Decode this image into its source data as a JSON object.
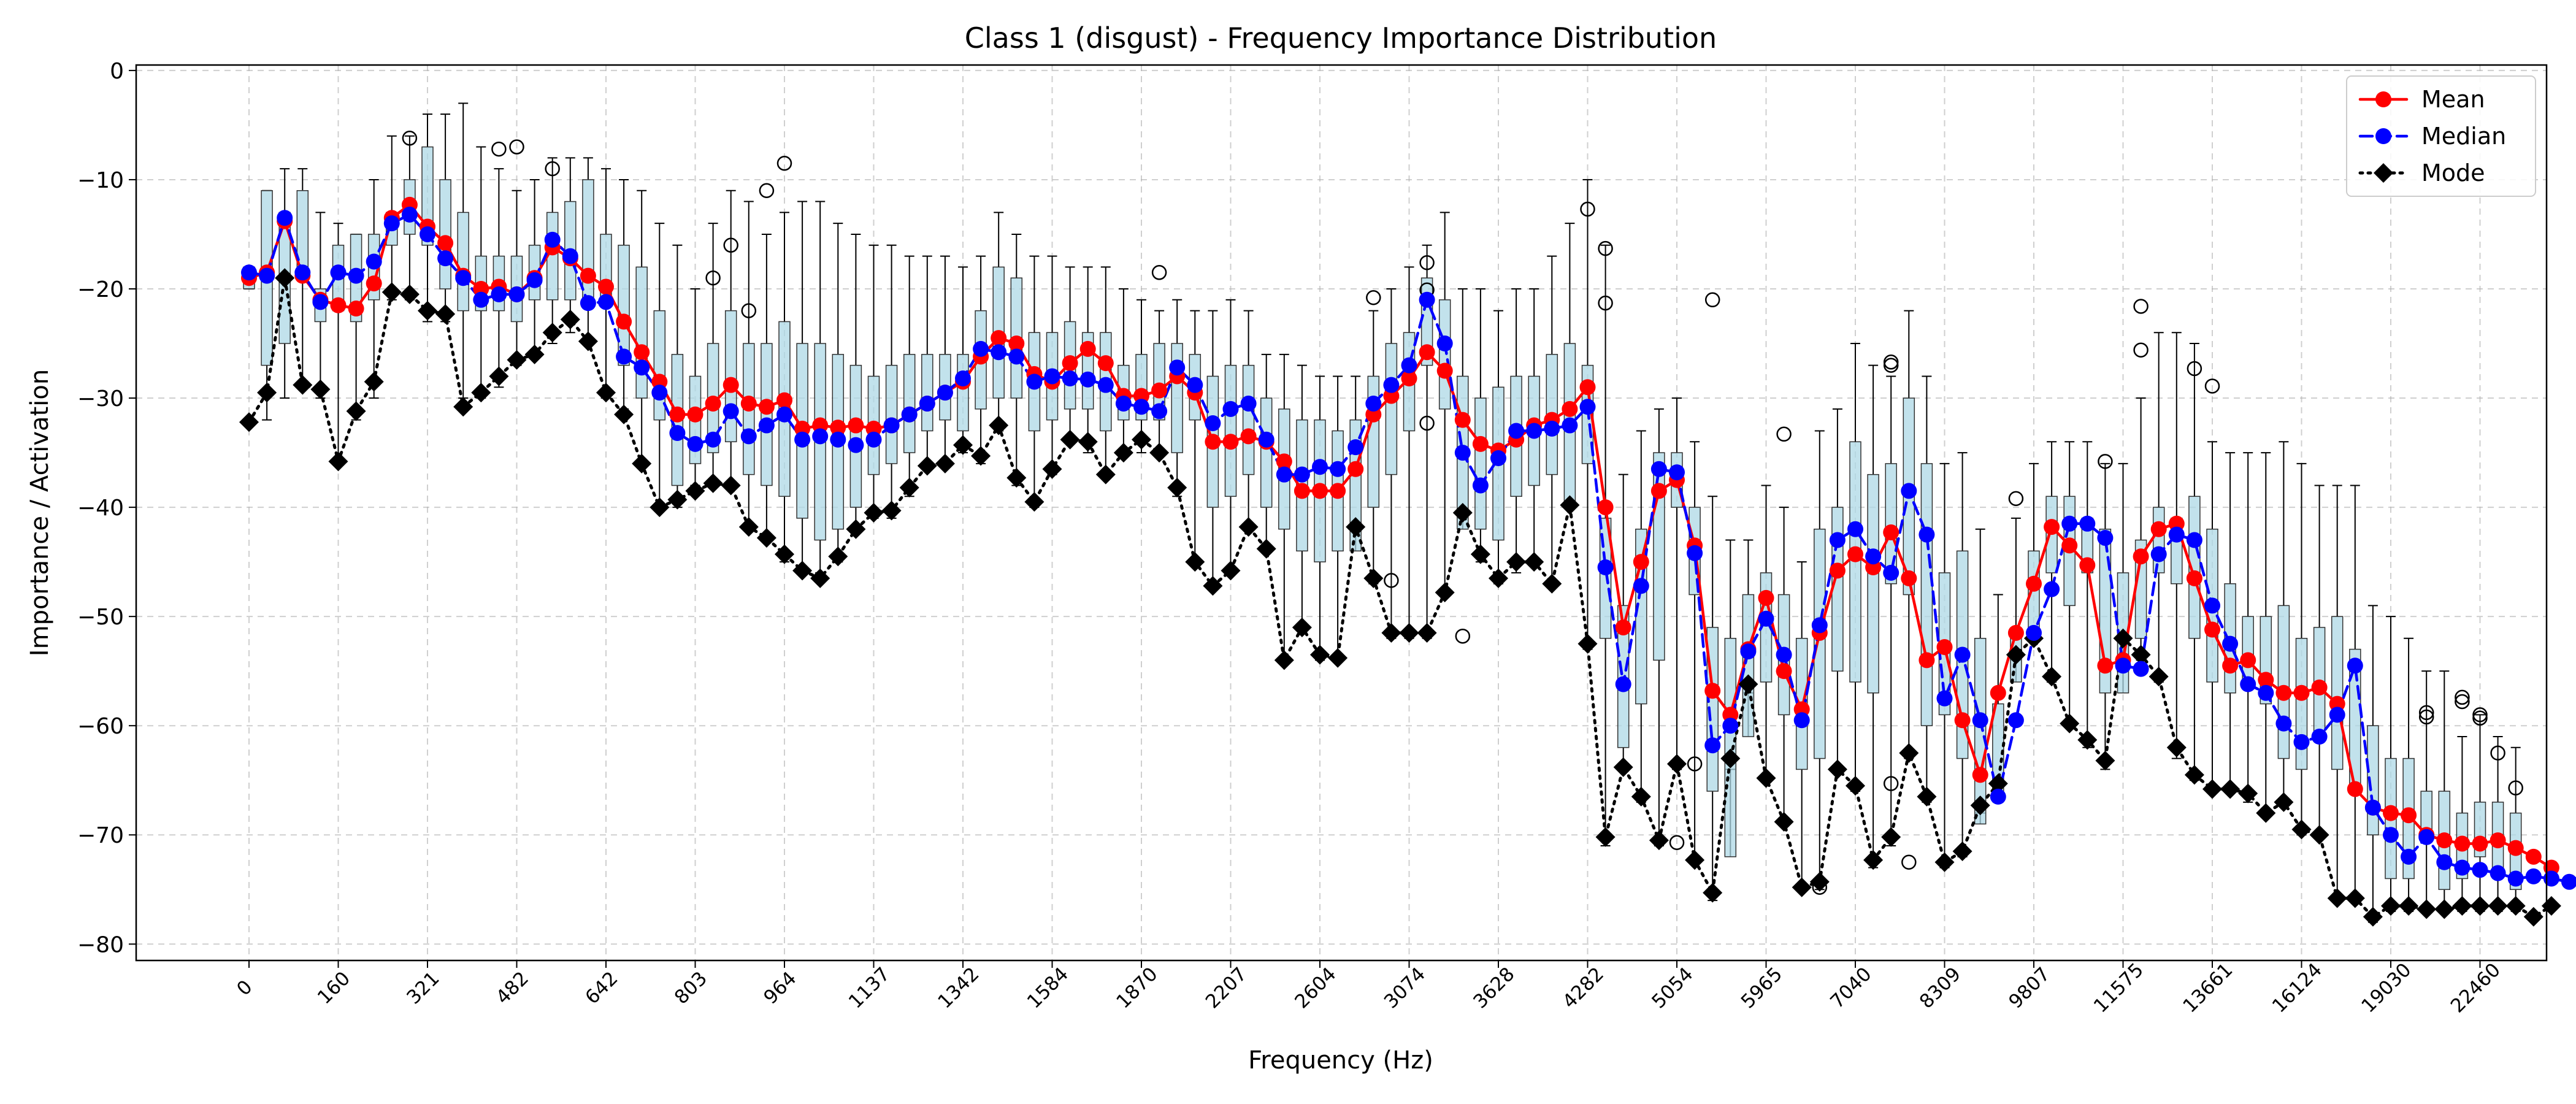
{
  "chart_data": {
    "type": "box-line",
    "title": "Class 1 (disgust) - Frequency Importance Distribution",
    "xlabel": "Frequency (Hz)",
    "ylabel": "Importance / Activation",
    "ylim": [
      -81.5,
      0.5
    ],
    "yticks": [
      0,
      -10,
      -20,
      -30,
      -40,
      -50,
      -60,
      -70,
      -80
    ],
    "ytick_labels": [
      "0",
      "−10",
      "−20",
      "−30",
      "−40",
      "−50",
      "−60",
      "−70",
      "−80"
    ],
    "grid": true,
    "legend_position": "top-right",
    "num_bins": 128,
    "xtick_labels": [
      "0",
      "160",
      "321",
      "482",
      "642",
      "803",
      "964",
      "1137",
      "1342",
      "1584",
      "1870",
      "2207",
      "2604",
      "3074",
      "3628",
      "4282",
      "5054",
      "5965",
      "7040",
      "8309",
      "9807",
      "11575",
      "13661",
      "16124",
      "19030",
      "22460"
    ],
    "xtick_every": 5,
    "colors": {
      "mean": "#ff0000",
      "median": "#0000ff",
      "mode": "#000000",
      "box_fill": "#add8e6",
      "box_median": "#ff7f0e",
      "grid": "#b0b0b0"
    },
    "series": [
      {
        "name": "Mean",
        "style": "solid-circle",
        "color": "#ff0000",
        "values": [
          -19.0,
          -18.5,
          -13.8,
          -18.8,
          -21.0,
          -21.5,
          -21.8,
          -19.5,
          -13.5,
          -12.3,
          -14.3,
          -15.8,
          -18.8,
          -20.0,
          -19.8,
          -20.5,
          -19.0,
          -16.2,
          -17.2,
          -18.8,
          -19.8,
          -23.0,
          -25.8,
          -28.5,
          -31.5,
          -31.5,
          -30.5,
          -28.8,
          -30.5,
          -30.8,
          -30.2,
          -32.8,
          -32.5,
          -32.7,
          -32.5,
          -32.8,
          -32.5,
          -31.5,
          -30.5,
          -29.5,
          -28.5,
          -26.2,
          -24.5,
          -25.0,
          -27.8,
          -28.5,
          -26.8,
          -25.5,
          -26.8,
          -29.8,
          -29.8,
          -29.3,
          -28.0,
          -29.5,
          -34.0,
          -34.0,
          -33.5,
          -34.0,
          -35.8,
          -38.5,
          -38.5,
          -38.5,
          -36.5,
          -31.5,
          -29.8,
          -28.2,
          -25.8,
          -27.5,
          -32.0,
          -34.2,
          -34.8,
          -33.8,
          -32.5,
          -32.0,
          -31.0,
          -29.0,
          -40.0,
          -51.0,
          -45.0,
          -38.5,
          -37.5,
          -43.5,
          -56.8,
          -59.0,
          -53.0,
          -48.3,
          -55.0,
          -58.5,
          -51.5,
          -45.8,
          -44.3,
          -45.5,
          -42.3,
          -46.5,
          -54.0,
          -52.8,
          -59.5,
          -64.5,
          -57.0,
          -51.5,
          -47.0,
          -41.8,
          -43.5,
          -45.3,
          -54.5,
          -54.0,
          -44.5,
          -42.0,
          -41.5,
          -46.5,
          -51.2,
          -54.5,
          -54.0,
          -55.8,
          -57.0,
          -57.0,
          -56.5,
          -58.0,
          -65.8,
          -67.5,
          -68.0,
          -68.2,
          -70.0,
          -70.5,
          -70.8,
          -70.8,
          -70.5,
          -71.2,
          -72.0,
          -73.0
        ]
      },
      {
        "name": "Median",
        "style": "dashed-circle",
        "color": "#0000ff",
        "values": [
          -18.5,
          -18.8,
          -13.5,
          -18.5,
          -21.2,
          -18.5,
          -18.8,
          -17.5,
          -14.0,
          -13.2,
          -15.0,
          -17.2,
          -19.0,
          -21.0,
          -20.5,
          -20.5,
          -19.2,
          -15.5,
          -17.0,
          -21.3,
          -21.2,
          -26.2,
          -27.2,
          -29.5,
          -33.2,
          -34.2,
          -33.8,
          -31.2,
          -33.5,
          -32.5,
          -31.5,
          -33.8,
          -33.5,
          -33.8,
          -34.3,
          -33.8,
          -32.5,
          -31.5,
          -30.5,
          -29.5,
          -28.2,
          -25.5,
          -25.8,
          -26.2,
          -28.5,
          -28.0,
          -28.2,
          -28.3,
          -28.8,
          -30.5,
          -30.8,
          -31.2,
          -27.2,
          -28.8,
          -32.3,
          -31.0,
          -30.5,
          -33.8,
          -37.0,
          -37.0,
          -36.3,
          -36.5,
          -34.5,
          -30.5,
          -28.8,
          -27.0,
          -21.0,
          -25.0,
          -35.0,
          -38.0,
          -35.5,
          -33.0,
          -33.0,
          -32.8,
          -32.5,
          -30.8,
          -45.5,
          -56.2,
          -47.2,
          -36.5,
          -36.8,
          -44.2,
          -61.8,
          -60.0,
          -53.2,
          -50.2,
          -53.5,
          -59.5,
          -50.8,
          -43.0,
          -42.0,
          -44.5,
          -46.0,
          -38.5,
          -42.5,
          -57.5,
          -53.5,
          -59.5,
          -66.5,
          -59.5,
          -51.5,
          -47.5,
          -41.5,
          -41.5,
          -42.8,
          -54.5,
          -54.8,
          -44.3,
          -42.5,
          -43.0,
          -49.0,
          -52.5,
          -56.2,
          -57.0,
          -59.8,
          -61.5,
          -61.0,
          -59.0,
          -54.5,
          -67.5,
          -70.0,
          -72.0,
          -70.2,
          -72.5,
          -73.0,
          -73.2,
          -73.5,
          -74.0,
          -73.8,
          -74.0,
          -74.3,
          -73.5
        ]
      },
      {
        "name": "Mode",
        "style": "dotted-diamond",
        "color": "#000000",
        "values": [
          -32.2,
          -29.5,
          -19.0,
          -28.8,
          -29.2,
          -35.8,
          -31.2,
          -28.5,
          -20.3,
          -20.5,
          -22.0,
          -22.3,
          -30.8,
          -29.5,
          -28.0,
          -26.5,
          -26.0,
          -24.0,
          -22.8,
          -24.8,
          -29.5,
          -31.5,
          -36.0,
          -40.0,
          -39.3,
          -38.5,
          -37.8,
          -38.0,
          -41.8,
          -42.8,
          -44.3,
          -45.8,
          -46.5,
          -44.5,
          -42.0,
          -40.5,
          -40.3,
          -38.2,
          -36.2,
          -36.0,
          -34.3,
          -35.3,
          -32.5,
          -37.3,
          -39.5,
          -36.5,
          -33.8,
          -34.0,
          -37.0,
          -35.0,
          -33.8,
          -35.0,
          -38.2,
          -45.0,
          -47.2,
          -45.8,
          -41.8,
          -43.8,
          -54.0,
          -51.0,
          -53.5,
          -53.8,
          -41.8,
          -46.5,
          -51.5,
          -51.5,
          -51.5,
          -47.8,
          -40.5,
          -44.3,
          -46.5,
          -45.0,
          -45.0,
          -47.0,
          -39.8,
          -52.5,
          -70.2,
          -63.8,
          -66.5,
          -70.5,
          -63.5,
          -72.3,
          -75.3,
          -63.0,
          -56.2,
          -64.8,
          -68.8,
          -74.8,
          -74.3,
          -64.0,
          -65.5,
          -72.3,
          -70.2,
          -62.5,
          -66.5,
          -72.5,
          -71.5,
          -67.3,
          -65.3,
          -53.5,
          -52.0,
          -55.5,
          -59.8,
          -61.3,
          -63.2,
          -52.0,
          -53.5,
          -55.5,
          -62.0,
          -64.5,
          -65.8,
          -65.8,
          -66.2,
          -68.0,
          -67.0,
          -69.5,
          -70.0,
          -75.8,
          -75.8,
          -77.5,
          -76.5,
          -76.5,
          -76.8,
          -76.8,
          -76.5,
          -76.5,
          -76.5,
          -76.5,
          -77.5,
          -76.5
        ]
      }
    ],
    "boxes": {
      "q1": [
        -20,
        -27,
        -25,
        -19,
        -23,
        -22,
        -23,
        -21,
        -16,
        -15,
        -16,
        -20,
        -22,
        -22,
        -22,
        -23,
        -21,
        -21,
        -21,
        -21,
        -21,
        -27,
        -30,
        -32,
        -38,
        -36,
        -35,
        -34,
        -37,
        -38,
        -39,
        -41,
        -43,
        -42,
        -40,
        -37,
        -36,
        -35,
        -33,
        -32,
        -33,
        -31,
        -30,
        -30,
        -33,
        -32,
        -31,
        -31,
        -33,
        -32,
        -32,
        -32,
        -35,
        -32,
        -40,
        -39,
        -37,
        -40,
        -42,
        -44,
        -45,
        -44,
        -44,
        -40,
        -37,
        -33,
        -27,
        -31,
        -42,
        -42,
        -43,
        -39,
        -38,
        -37,
        -40,
        -36,
        -52,
        -62,
        -58,
        -54,
        -40,
        -48,
        -66,
        -72,
        -61,
        -56,
        -59,
        -64,
        -63,
        -55,
        -56,
        -57,
        -47,
        -48,
        -60,
        -59,
        -63,
        -69,
        -66,
        -56,
        -52,
        -46,
        -49,
        -46,
        -57,
        -57,
        -52,
        -46,
        -47,
        -52,
        -56,
        -57,
        -56,
        -58,
        -63,
        -64,
        -61,
        -64,
        -66,
        -70,
        -74,
        -74,
        -70,
        -75,
        -74,
        -72,
        -73,
        -75,
        -75,
        -74
      ],
      "median": [
        -18.5,
        -18.8,
        -13.5,
        -18.5,
        -21.2,
        -18.5,
        -18.8,
        -17.5,
        -14.0,
        -13.2,
        -15.0,
        -17.2,
        -19.0,
        -21.0,
        -20.5,
        -20.5,
        -19.2,
        -15.5,
        -17.0,
        -21.3,
        -21.2,
        -26.2,
        -27.2,
        -29.5,
        -33.2,
        -34.2,
        -33.8,
        -31.2,
        -33.5,
        -32.5,
        -31.5,
        -33.8,
        -33.5,
        -33.8,
        -34.3,
        -33.8,
        -32.5,
        -31.5,
        -30.5,
        -29.5,
        -28.2,
        -25.5,
        -25.8,
        -26.2,
        -28.5,
        -28.0,
        -28.2,
        -28.3,
        -28.8,
        -30.5,
        -30.8,
        -31.2,
        -27.2,
        -28.8,
        -32.3,
        -31.0,
        -30.5,
        -33.8,
        -37.0,
        -37.0,
        -36.3,
        -36.5,
        -34.5,
        -30.5,
        -28.8,
        -27.0,
        -21.0,
        -25.0,
        -35.0,
        -38.0,
        -35.5,
        -33.0,
        -33.0,
        -32.8,
        -32.5,
        -30.8,
        -45.5,
        -56.2,
        -47.2,
        -36.5,
        -36.8,
        -44.2,
        -61.8,
        -60.0,
        -53.2,
        -50.2,
        -53.5,
        -59.5,
        -50.8,
        -43.0,
        -42.0,
        -44.5,
        -46.0,
        -38.5,
        -42.5,
        -57.5,
        -53.5,
        -59.5,
        -66.5,
        -59.5,
        -51.5,
        -47.5,
        -41.5,
        -41.5,
        -42.8,
        -54.5,
        -54.8,
        -44.3,
        -42.5,
        -43.0,
        -49.0,
        -52.5,
        -56.2,
        -57.0,
        -59.8,
        -61.5,
        -61.0,
        -59.0,
        -54.5,
        -67.5,
        -70.0,
        -72.0,
        -70.2,
        -72.5,
        -73.0,
        -73.2,
        -73.5,
        -74.0,
        -73.8,
        -74.0,
        -74.3,
        -73.5
      ],
      "q3": [
        -18,
        -11,
        -13,
        -11,
        -20,
        -16,
        -15,
        -15,
        -13,
        -10,
        -7,
        -10,
        -13,
        -17,
        -17,
        -17,
        -16,
        -13,
        -12,
        -10,
        -15,
        -16,
        -18,
        -22,
        -26,
        -28,
        -25,
        -22,
        -25,
        -25,
        -23,
        -25,
        -25,
        -26,
        -27,
        -28,
        -27,
        -26,
        -26,
        -26,
        -26,
        -22,
        -18,
        -19,
        -24,
        -24,
        -23,
        -24,
        -24,
        -27,
        -26,
        -25,
        -25,
        -26,
        -28,
        -27,
        -27,
        -30,
        -31,
        -32,
        -32,
        -33,
        -32,
        -28,
        -25,
        -24,
        -19,
        -21,
        -28,
        -30,
        -29,
        -28,
        -28,
        -26,
        -25,
        -27,
        -41,
        -49,
        -42,
        -35,
        -35,
        -40,
        -51,
        -52,
        -48,
        -46,
        -48,
        -52,
        -42,
        -40,
        -34,
        -37,
        -36,
        -30,
        -36,
        -46,
        -44,
        -52,
        -58,
        -52,
        -44,
        -39,
        -39,
        -41,
        -42,
        -46,
        -43,
        -40,
        -41,
        -39,
        -42,
        -47,
        -50,
        -50,
        -49,
        -52,
        -51,
        -50,
        -53,
        -60,
        -63,
        -63,
        -66,
        -66,
        -68,
        -67,
        -67,
        -68,
        -73,
        -73
      ],
      "wlow": [
        -20,
        -32,
        -30,
        -29,
        -30,
        -36,
        -32,
        -30,
        -21,
        -21,
        -23,
        -23,
        -30,
        -30,
        -29,
        -27,
        -26,
        -25,
        -24,
        -25,
        -30,
        -31,
        -36,
        -40,
        -40,
        -38,
        -38,
        -38,
        -42,
        -43,
        -45,
        -46,
        -46,
        -45,
        -42,
        -41,
        -41,
        -39,
        -36,
        -36,
        -35,
        -36,
        -33,
        -38,
        -40,
        -37,
        -34,
        -35,
        -37,
        -35,
        -35,
        -35,
        -39,
        -45,
        -47,
        -46,
        -42,
        -44,
        -54,
        -51,
        -54,
        -54,
        -42,
        -47,
        -52,
        -52,
        -52,
        -48,
        -41,
        -45,
        -47,
        -46,
        -45,
        -47,
        -40,
        -53,
        -71,
        -64,
        -67,
        -71,
        -64,
        -72,
        -76,
        -64,
        -57,
        -65,
        -69,
        -75,
        -75,
        -64,
        -66,
        -73,
        -71,
        -63,
        -67,
        -73,
        -72,
        -68,
        -66,
        -54,
        -52,
        -56,
        -60,
        -62,
        -64,
        -52,
        -54,
        -56,
        -63,
        -65,
        -66,
        -66,
        -67,
        -68,
        -67,
        -70,
        -70,
        -76,
        -76,
        -78,
        -77,
        -77,
        -77,
        -77,
        -77,
        -77,
        -77,
        -77,
        -78,
        -77
      ],
      "whigh": [
        -18,
        -11,
        -9,
        -9,
        -13,
        -14,
        -15,
        -10,
        -6,
        -6,
        -4,
        -4,
        -3,
        -7,
        -9,
        -11,
        -10,
        -8,
        -8,
        -8,
        -9,
        -10,
        -11,
        -14,
        -16,
        -20,
        -14,
        -11,
        -12,
        -15,
        -13,
        -12,
        -12,
        -14,
        -15,
        -16,
        -16,
        -17,
        -17,
        -17,
        -18,
        -17,
        -13,
        -15,
        -17,
        -17,
        -18,
        -18,
        -18,
        -20,
        -21,
        -22,
        -21,
        -22,
        -22,
        -21,
        -22,
        -26,
        -26,
        -27,
        -28,
        -28,
        -28,
        -22,
        -20,
        -18,
        -16,
        -13,
        -20,
        -20,
        -22,
        -20,
        -20,
        -17,
        -14,
        -10,
        -16,
        -37,
        -33,
        -31,
        -30,
        -34,
        -39,
        -43,
        -43,
        -38,
        -40,
        -45,
        -33,
        -31,
        -25,
        -27,
        -28,
        -22,
        -28,
        -36,
        -35,
        -42,
        -48,
        -41,
        -36,
        -34,
        -34,
        -34,
        -36,
        -36,
        -30,
        -24,
        -24,
        -25,
        -34,
        -35,
        -35,
        -35,
        -34,
        -36,
        -38,
        -38,
        -38,
        -49,
        -50,
        -52,
        -55,
        -55,
        -61,
        -59,
        -61,
        -62,
        -70,
        -70
      ],
      "outliers": [
        [
          9,
          -6.2
        ],
        [
          14,
          -7.2
        ],
        [
          15,
          -7.0
        ],
        [
          17,
          -9.0
        ],
        [
          26,
          -19.0
        ],
        [
          27,
          -16.0
        ],
        [
          28,
          -22.0
        ],
        [
          29,
          -11.0
        ],
        [
          30,
          -8.5
        ],
        [
          51,
          -18.5
        ],
        [
          63,
          -20.8
        ],
        [
          64,
          -46.7
        ],
        [
          66,
          -17.6
        ],
        [
          66,
          -20.1
        ],
        [
          66,
          -32.3
        ],
        [
          68,
          -51.8
        ],
        [
          75,
          -12.7
        ],
        [
          76,
          -16.3
        ],
        [
          76,
          -21.3
        ],
        [
          80,
          -70.7
        ],
        [
          81,
          -63.5
        ],
        [
          82,
          -21.0
        ],
        [
          86,
          -33.3
        ],
        [
          88,
          -74.8
        ],
        [
          92,
          -26.7
        ],
        [
          92,
          -27.0
        ],
        [
          92,
          -65.3
        ],
        [
          93,
          -72.5
        ],
        [
          99,
          -39.2
        ],
        [
          104,
          -35.8
        ],
        [
          106,
          -21.6
        ],
        [
          106,
          -25.6
        ],
        [
          109,
          -27.3
        ],
        [
          110,
          -28.9
        ],
        [
          122,
          -58.8
        ],
        [
          122,
          -59.2
        ],
        [
          124,
          -57.4
        ],
        [
          124,
          -57.8
        ],
        [
          125,
          -59.0
        ],
        [
          125,
          -59.3
        ],
        [
          126,
          -62.5
        ],
        [
          127,
          -65.7
        ]
      ]
    }
  }
}
